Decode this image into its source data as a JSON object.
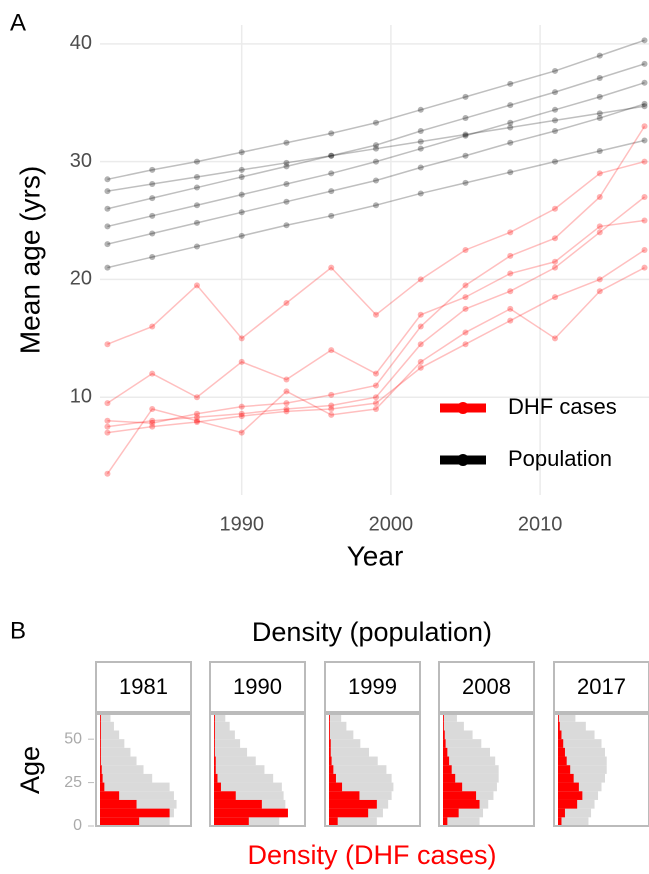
{
  "chart_data": [
    {
      "type": "line",
      "tag": "A",
      "xlabel": "Year",
      "ylabel": "Mean age (yrs)",
      "x": [
        1981,
        1984,
        1987,
        1990,
        1993,
        1996,
        1999,
        2002,
        2005,
        2008,
        2011,
        2014,
        2017
      ],
      "xlim": [
        1980.5,
        2017.3
      ],
      "xticks": [
        1990,
        2000,
        2010
      ],
      "ylim": [
        1.7,
        41.6
      ],
      "yticks": [
        10,
        20,
        30,
        40
      ],
      "grid": true,
      "legend": "bottom-right",
      "series": [
        {
          "name": "DHF cases",
          "color": "#ff0000",
          "lines": [
            [
              7.5,
              8.0,
              8.3,
              8.6,
              9.0,
              9.3,
              10.0,
              14.5,
              17.5,
              19.0,
              21.0,
              24.0,
              27.0
            ],
            [
              8.0,
              7.8,
              8.6,
              9.2,
              9.5,
              10.2,
              11.0,
              16.0,
              19.5,
              22.0,
              23.5,
              27.0,
              33.0
            ],
            [
              7.0,
              7.5,
              7.9,
              8.4,
              8.8,
              9.0,
              9.5,
              12.5,
              14.5,
              16.5,
              18.5,
              20.0,
              22.5
            ],
            [
              14.5,
              16.0,
              19.5,
              15.0,
              18.0,
              21.0,
              17.0,
              20.0,
              22.5,
              24.0,
              26.0,
              29.0,
              30.0
            ],
            [
              9.5,
              12.0,
              10.0,
              13.0,
              11.5,
              14.0,
              12.0,
              17.0,
              18.5,
              20.5,
              21.5,
              24.5,
              25.0
            ],
            [
              3.5,
              9.0,
              8.0,
              7.0,
              10.5,
              8.5,
              9.0,
              13.0,
              15.5,
              17.5,
              15.0,
              19.0,
              21.0
            ]
          ]
        },
        {
          "name": "Population",
          "color": "#000000",
          "lines": [
            [
              28.5,
              29.3,
              30.0,
              30.8,
              31.6,
              32.4,
              33.3,
              34.4,
              35.5,
              36.6,
              37.7,
              39.0,
              40.3
            ],
            [
              26.0,
              26.9,
              27.8,
              28.7,
              29.6,
              30.5,
              31.4,
              32.6,
              33.7,
              34.8,
              35.9,
              37.1,
              38.3
            ],
            [
              24.5,
              25.4,
              26.3,
              27.2,
              28.1,
              29.0,
              30.0,
              31.1,
              32.2,
              33.3,
              34.4,
              35.5,
              36.7
            ],
            [
              23.0,
              23.9,
              24.8,
              25.7,
              26.6,
              27.5,
              28.4,
              29.5,
              30.5,
              31.6,
              32.6,
              33.7,
              34.9
            ],
            [
              21.0,
              21.9,
              22.8,
              23.7,
              24.6,
              25.4,
              26.3,
              27.3,
              28.2,
              29.1,
              30.0,
              30.9,
              31.8
            ],
            [
              27.5,
              28.1,
              28.7,
              29.3,
              29.9,
              30.5,
              31.1,
              31.7,
              32.3,
              32.9,
              33.5,
              34.1,
              34.7
            ]
          ]
        }
      ]
    },
    {
      "type": "histogram",
      "tag": "B",
      "title": "Density (population)",
      "xlabel": "Density (DHF cases)",
      "ylabel": "Age",
      "bins": [
        0,
        5,
        10,
        15,
        20,
        25,
        30,
        35,
        40,
        45,
        50,
        55,
        60,
        65
      ],
      "ylim": [
        0,
        64.5
      ],
      "yticks": [
        0,
        25,
        50
      ],
      "xlim": [
        0,
        1
      ],
      "population_color": "#dadada",
      "cases_color": "#ff0000",
      "panels": [
        {
          "label": "1981",
          "population": [
            0.8,
            0.85,
            0.88,
            0.85,
            0.8,
            0.6,
            0.5,
            0.42,
            0.35,
            0.28,
            0.22,
            0.16,
            0.12
          ],
          "cases": [
            0.45,
            0.8,
            0.42,
            0.22,
            0.05,
            0.03,
            0.02,
            0.01,
            0.01,
            0.01,
            0.01,
            0.01,
            0.01
          ]
        },
        {
          "label": "1990",
          "population": [
            0.75,
            0.8,
            0.82,
            0.8,
            0.78,
            0.68,
            0.58,
            0.48,
            0.38,
            0.3,
            0.24,
            0.18,
            0.13
          ],
          "cases": [
            0.4,
            0.85,
            0.55,
            0.25,
            0.08,
            0.04,
            0.02,
            0.02,
            0.01,
            0.01,
            0.01,
            0.01,
            0.01
          ]
        },
        {
          "label": "1999",
          "population": [
            0.55,
            0.62,
            0.68,
            0.72,
            0.74,
            0.72,
            0.66,
            0.56,
            0.46,
            0.36,
            0.28,
            0.2,
            0.14
          ],
          "cases": [
            0.1,
            0.45,
            0.55,
            0.35,
            0.15,
            0.08,
            0.05,
            0.03,
            0.02,
            0.02,
            0.01,
            0.01,
            0.01
          ]
        },
        {
          "label": "2008",
          "population": [
            0.42,
            0.46,
            0.52,
            0.58,
            0.62,
            0.64,
            0.64,
            0.6,
            0.54,
            0.44,
            0.34,
            0.24,
            0.16
          ],
          "cases": [
            0.05,
            0.18,
            0.42,
            0.38,
            0.22,
            0.14,
            0.1,
            0.07,
            0.05,
            0.03,
            0.02,
            0.01,
            0.01
          ]
        },
        {
          "label": "2017",
          "population": [
            0.35,
            0.38,
            0.42,
            0.46,
            0.5,
            0.54,
            0.56,
            0.56,
            0.54,
            0.5,
            0.42,
            0.32,
            0.2
          ],
          "cases": [
            0.04,
            0.08,
            0.22,
            0.28,
            0.24,
            0.18,
            0.14,
            0.1,
            0.08,
            0.06,
            0.04,
            0.02,
            0.01
          ]
        }
      ]
    }
  ]
}
